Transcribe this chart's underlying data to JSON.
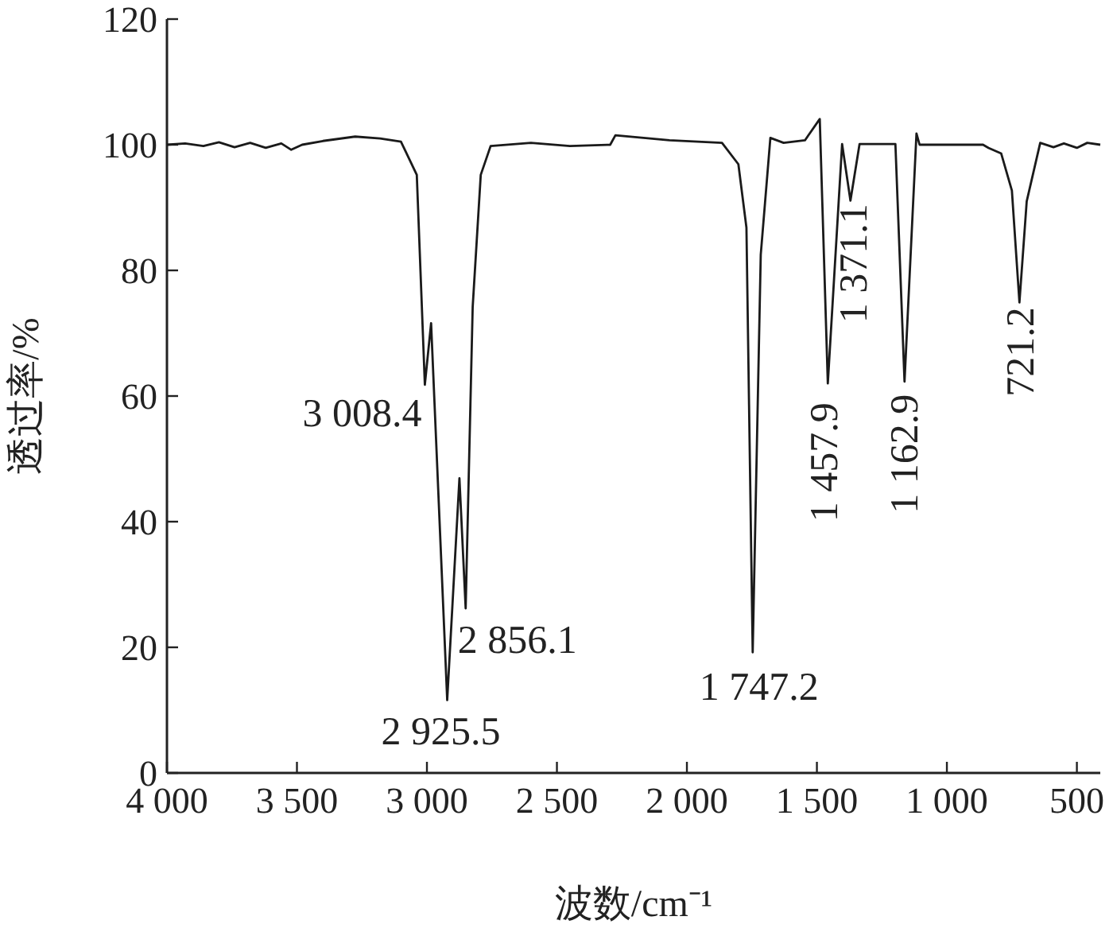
{
  "chart_data": {
    "type": "line",
    "xlabel": "波数/cm⁻¹",
    "ylabel": "透过率/%",
    "x": [
      4000,
      3930,
      3860,
      3800,
      3740,
      3680,
      3620,
      3560,
      3522,
      3480,
      3400,
      3276,
      3180,
      3100,
      3039,
      3008,
      2984,
      2922,
      2875,
      2851,
      2824,
      2793,
      2755,
      2600,
      2450,
      2295,
      2275,
      2067,
      1865,
      1802,
      1771,
      1747,
      1716,
      1679,
      1628,
      1546,
      1489,
      1458,
      1403,
      1371,
      1336,
      1198,
      1163,
      1117,
      1105,
      861,
      840,
      791,
      750,
      721,
      693,
      641,
      590,
      550,
      500,
      460,
      410
    ],
    "series": [
      {
        "color": "#1a1a1a",
        "values": [
          100,
          100.2,
          99.8,
          100.4,
          99.6,
          100.3,
          99.5,
          100.2,
          99.2,
          100,
          100.6,
          101.3,
          101,
          100.5,
          95.2,
          61.8,
          71.6,
          11.6,
          46.9,
          26.2,
          74.2,
          95.2,
          99.8,
          100.3,
          99.8,
          100,
          101.5,
          100.7,
          100.3,
          96.9,
          86.8,
          19.2,
          82.5,
          101.1,
          100.3,
          100.7,
          104.1,
          62,
          100.1,
          91.1,
          100.1,
          100.1,
          62.3,
          101.8,
          100,
          100,
          99.5,
          98.6,
          92.7,
          74.9,
          91,
          100.3,
          99.6,
          100.2,
          99.5,
          100.3,
          100
        ]
      }
    ],
    "xlim": [
      4000,
      410
    ],
    "ylim": [
      0,
      120
    ],
    "xticks": [
      {
        "value": 4000,
        "label": "4 000"
      },
      {
        "value": 3500,
        "label": "3 500"
      },
      {
        "value": 3000,
        "label": "3 000"
      },
      {
        "value": 2500,
        "label": "2 500"
      },
      {
        "value": 2000,
        "label": "2 000"
      },
      {
        "value": 1500,
        "label": "1 500"
      },
      {
        "value": 1000,
        "label": "1 000"
      },
      500
    ],
    "yticks": [
      0,
      20,
      40,
      60,
      80,
      100,
      120
    ],
    "annotations": [
      {
        "text": "3 008.4",
        "x": 3008,
        "y": 61.8
      },
      {
        "text": "2 925.5",
        "x": 2922,
        "y": 11.6
      },
      {
        "text": "2 856.1",
        "x": 2851,
        "y": 26.2
      },
      {
        "text": "1 747.2",
        "x": 1747,
        "y": 19.2
      },
      {
        "text": "1 457.9",
        "x": 1458,
        "y": 62
      },
      {
        "text": "1 371.1",
        "x": 1371,
        "y": 91.1
      },
      {
        "text": "1 162.9",
        "x": 1163,
        "y": 62.3
      },
      {
        "text": "721.2",
        "x": 721,
        "y": 74.9
      }
    ]
  }
}
